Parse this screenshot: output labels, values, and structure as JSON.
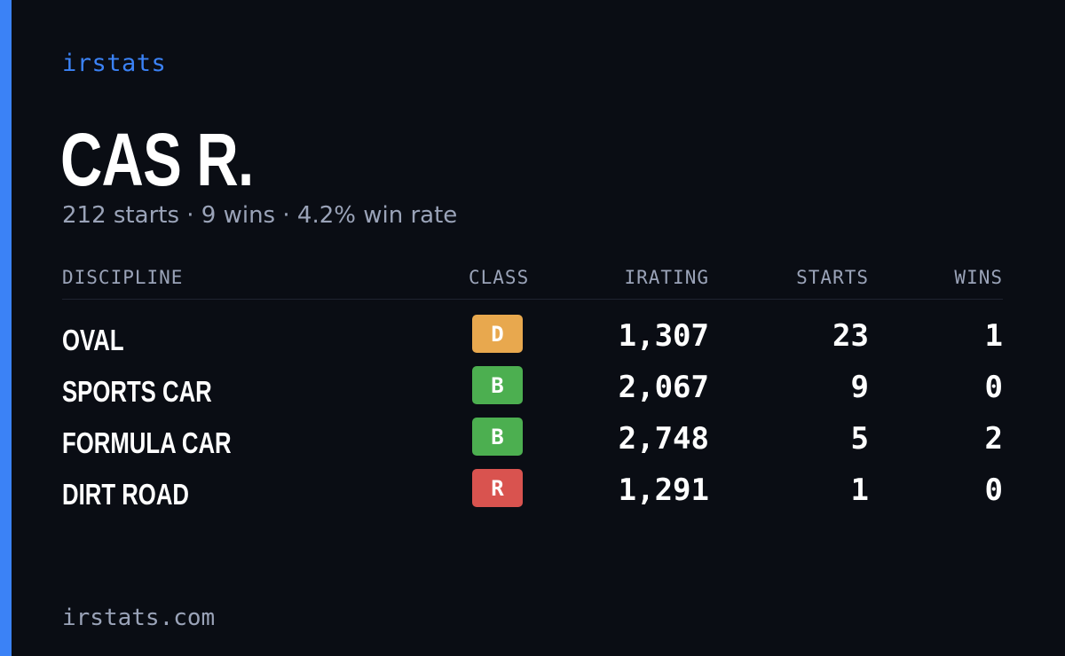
{
  "brand": "irstats",
  "driver": {
    "name": "CAS R.",
    "summary": "212 starts · 9 wins · 4.2% win rate"
  },
  "colors": {
    "background": "#0a0d14",
    "accent": "#3b82f6",
    "muted_text": "#9aa3b8",
    "class_D": "#e8a84e",
    "class_B": "#4caf50",
    "class_R": "#d9534f"
  },
  "table": {
    "headers": {
      "discipline": "DISCIPLINE",
      "class": "CLASS",
      "irating": "IRATING",
      "starts": "STARTS",
      "wins": "WINS"
    },
    "rows": [
      {
        "discipline": "OVAL",
        "class": "D",
        "class_color": "#e8a84e",
        "irating": "1,307",
        "starts": "23",
        "wins": "1"
      },
      {
        "discipline": "SPORTS CAR",
        "class": "B",
        "class_color": "#4caf50",
        "irating": "2,067",
        "starts": "9",
        "wins": "0"
      },
      {
        "discipline": "FORMULA CAR",
        "class": "B",
        "class_color": "#4caf50",
        "irating": "2,748",
        "starts": "5",
        "wins": "2"
      },
      {
        "discipline": "DIRT ROAD",
        "class": "R",
        "class_color": "#d9534f",
        "irating": "1,291",
        "starts": "1",
        "wins": "0"
      }
    ]
  },
  "footer": "irstats.com"
}
